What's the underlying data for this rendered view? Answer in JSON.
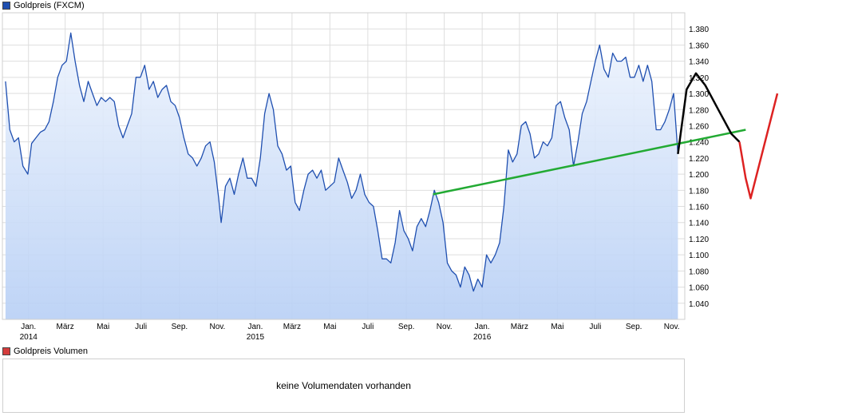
{
  "legend": {
    "price_label": "Goldpreis (FXCM)",
    "price_color": "#1f4fb0",
    "volume_label": "Goldpreis Volumen",
    "volume_color": "#d43c3c"
  },
  "volume_panel": {
    "message": "keine Volumendaten vorhanden"
  },
  "chart_data": {
    "type": "area",
    "title": "Goldpreis (FXCM)",
    "xlabel": "",
    "ylabel": "",
    "ylim": [
      1020,
      1400
    ],
    "grid": true,
    "y_ticks": [
      1040,
      1060,
      1080,
      1100,
      1120,
      1140,
      1160,
      1180,
      1200,
      1220,
      1240,
      1260,
      1280,
      1300,
      1320,
      1340,
      1360,
      1380
    ],
    "y_tick_labels": [
      "1.040",
      "1.060",
      "1.080",
      "1.100",
      "1.120",
      "1.140",
      "1.160",
      "1.180",
      "1.200",
      "1.220",
      "1.240",
      "1.260",
      "1.280",
      "1.300",
      "1.320",
      "1.340",
      "1.360",
      "1.380"
    ],
    "x_ticks": [
      {
        "label": "Jan.",
        "year": "2014",
        "date": "2014-01-01"
      },
      {
        "label": "März",
        "year": "",
        "date": "2014-03-01"
      },
      {
        "label": "Mai",
        "year": "",
        "date": "2014-05-01"
      },
      {
        "label": "Juli",
        "year": "",
        "date": "2014-07-01"
      },
      {
        "label": "Sep.",
        "year": "",
        "date": "2014-09-01"
      },
      {
        "label": "Nov.",
        "year": "",
        "date": "2014-11-01"
      },
      {
        "label": "Jan.",
        "year": "2015",
        "date": "2015-01-01"
      },
      {
        "label": "März",
        "year": "",
        "date": "2015-03-01"
      },
      {
        "label": "Mai",
        "year": "",
        "date": "2015-05-01"
      },
      {
        "label": "Juli",
        "year": "",
        "date": "2015-07-01"
      },
      {
        "label": "Sep.",
        "year": "",
        "date": "2015-09-01"
      },
      {
        "label": "Nov.",
        "year": "",
        "date": "2015-11-01"
      },
      {
        "label": "Jan.",
        "year": "2016",
        "date": "2016-01-01"
      },
      {
        "label": "März",
        "year": "",
        "date": "2016-03-01"
      },
      {
        "label": "Mai",
        "year": "",
        "date": "2016-05-01"
      },
      {
        "label": "Juli",
        "year": "",
        "date": "2016-07-01"
      },
      {
        "label": "Sep.",
        "year": "",
        "date": "2016-09-01"
      },
      {
        "label": "Nov.",
        "year": "",
        "date": "2016-11-01"
      }
    ],
    "series": [
      {
        "name": "Goldpreis (FXCM)",
        "color": "#1f4fb0",
        "points": [
          [
            "2013-11-25",
            1315
          ],
          [
            "2013-12-02",
            1255
          ],
          [
            "2013-12-09",
            1240
          ],
          [
            "2013-12-16",
            1245
          ],
          [
            "2013-12-23",
            1210
          ],
          [
            "2013-12-31",
            1200
          ],
          [
            "2014-01-06",
            1238
          ],
          [
            "2014-01-13",
            1245
          ],
          [
            "2014-01-20",
            1252
          ],
          [
            "2014-01-27",
            1255
          ],
          [
            "2014-02-03",
            1265
          ],
          [
            "2014-02-10",
            1290
          ],
          [
            "2014-02-17",
            1320
          ],
          [
            "2014-02-24",
            1335
          ],
          [
            "2014-03-03",
            1340
          ],
          [
            "2014-03-10",
            1375
          ],
          [
            "2014-03-17",
            1340
          ],
          [
            "2014-03-24",
            1310
          ],
          [
            "2014-03-31",
            1290
          ],
          [
            "2014-04-07",
            1315
          ],
          [
            "2014-04-14",
            1300
          ],
          [
            "2014-04-21",
            1285
          ],
          [
            "2014-04-28",
            1295
          ],
          [
            "2014-05-05",
            1290
          ],
          [
            "2014-05-12",
            1295
          ],
          [
            "2014-05-19",
            1290
          ],
          [
            "2014-05-26",
            1260
          ],
          [
            "2014-06-02",
            1245
          ],
          [
            "2014-06-09",
            1260
          ],
          [
            "2014-06-16",
            1275
          ],
          [
            "2014-06-23",
            1320
          ],
          [
            "2014-06-30",
            1320
          ],
          [
            "2014-07-07",
            1335
          ],
          [
            "2014-07-14",
            1305
          ],
          [
            "2014-07-21",
            1315
          ],
          [
            "2014-07-28",
            1295
          ],
          [
            "2014-08-04",
            1305
          ],
          [
            "2014-08-11",
            1310
          ],
          [
            "2014-08-18",
            1290
          ],
          [
            "2014-08-25",
            1285
          ],
          [
            "2014-09-01",
            1270
          ],
          [
            "2014-09-08",
            1245
          ],
          [
            "2014-09-15",
            1225
          ],
          [
            "2014-09-22",
            1220
          ],
          [
            "2014-09-29",
            1210
          ],
          [
            "2014-10-06",
            1220
          ],
          [
            "2014-10-13",
            1235
          ],
          [
            "2014-10-20",
            1240
          ],
          [
            "2014-10-27",
            1215
          ],
          [
            "2014-11-03",
            1170
          ],
          [
            "2014-11-07",
            1140
          ],
          [
            "2014-11-14",
            1185
          ],
          [
            "2014-11-21",
            1195
          ],
          [
            "2014-11-28",
            1175
          ],
          [
            "2014-12-05",
            1200
          ],
          [
            "2014-12-12",
            1220
          ],
          [
            "2014-12-19",
            1195
          ],
          [
            "2014-12-26",
            1195
          ],
          [
            "2015-01-02",
            1185
          ],
          [
            "2015-01-09",
            1220
          ],
          [
            "2015-01-16",
            1275
          ],
          [
            "2015-01-23",
            1300
          ],
          [
            "2015-01-30",
            1280
          ],
          [
            "2015-02-06",
            1235
          ],
          [
            "2015-02-13",
            1225
          ],
          [
            "2015-02-20",
            1205
          ],
          [
            "2015-02-27",
            1210
          ],
          [
            "2015-03-06",
            1165
          ],
          [
            "2015-03-13",
            1155
          ],
          [
            "2015-03-20",
            1180
          ],
          [
            "2015-03-27",
            1200
          ],
          [
            "2015-04-03",
            1205
          ],
          [
            "2015-04-10",
            1195
          ],
          [
            "2015-04-17",
            1205
          ],
          [
            "2015-04-24",
            1180
          ],
          [
            "2015-05-01",
            1185
          ],
          [
            "2015-05-08",
            1190
          ],
          [
            "2015-05-15",
            1220
          ],
          [
            "2015-05-22",
            1205
          ],
          [
            "2015-05-29",
            1190
          ],
          [
            "2015-06-05",
            1170
          ],
          [
            "2015-06-12",
            1180
          ],
          [
            "2015-06-19",
            1200
          ],
          [
            "2015-06-26",
            1175
          ],
          [
            "2015-07-03",
            1165
          ],
          [
            "2015-07-10",
            1160
          ],
          [
            "2015-07-17",
            1130
          ],
          [
            "2015-07-24",
            1095
          ],
          [
            "2015-07-31",
            1095
          ],
          [
            "2015-08-07",
            1090
          ],
          [
            "2015-08-14",
            1115
          ],
          [
            "2015-08-21",
            1155
          ],
          [
            "2015-08-28",
            1130
          ],
          [
            "2015-09-04",
            1120
          ],
          [
            "2015-09-11",
            1105
          ],
          [
            "2015-09-18",
            1135
          ],
          [
            "2015-09-25",
            1145
          ],
          [
            "2015-10-02",
            1135
          ],
          [
            "2015-10-09",
            1155
          ],
          [
            "2015-10-16",
            1180
          ],
          [
            "2015-10-23",
            1165
          ],
          [
            "2015-10-30",
            1140
          ],
          [
            "2015-11-06",
            1090
          ],
          [
            "2015-11-13",
            1080
          ],
          [
            "2015-11-20",
            1075
          ],
          [
            "2015-11-27",
            1060
          ],
          [
            "2015-12-04",
            1085
          ],
          [
            "2015-12-11",
            1075
          ],
          [
            "2015-12-18",
            1055
          ],
          [
            "2015-12-25",
            1070
          ],
          [
            "2016-01-01",
            1060
          ],
          [
            "2016-01-08",
            1100
          ],
          [
            "2016-01-15",
            1090
          ],
          [
            "2016-01-22",
            1100
          ],
          [
            "2016-01-29",
            1115
          ],
          [
            "2016-02-05",
            1160
          ],
          [
            "2016-02-12",
            1230
          ],
          [
            "2016-02-19",
            1215
          ],
          [
            "2016-02-26",
            1225
          ],
          [
            "2016-03-04",
            1260
          ],
          [
            "2016-03-11",
            1265
          ],
          [
            "2016-03-18",
            1250
          ],
          [
            "2016-03-25",
            1220
          ],
          [
            "2016-04-01",
            1225
          ],
          [
            "2016-04-08",
            1240
          ],
          [
            "2016-04-15",
            1235
          ],
          [
            "2016-04-22",
            1245
          ],
          [
            "2016-04-29",
            1285
          ],
          [
            "2016-05-06",
            1290
          ],
          [
            "2016-05-13",
            1270
          ],
          [
            "2016-05-20",
            1255
          ],
          [
            "2016-05-27",
            1210
          ],
          [
            "2016-06-03",
            1240
          ],
          [
            "2016-06-10",
            1275
          ],
          [
            "2016-06-17",
            1290
          ],
          [
            "2016-06-24",
            1315
          ],
          [
            "2016-07-01",
            1340
          ],
          [
            "2016-07-08",
            1360
          ],
          [
            "2016-07-15",
            1330
          ],
          [
            "2016-07-22",
            1320
          ],
          [
            "2016-07-29",
            1350
          ],
          [
            "2016-08-05",
            1340
          ],
          [
            "2016-08-12",
            1340
          ],
          [
            "2016-08-19",
            1345
          ],
          [
            "2016-08-26",
            1320
          ],
          [
            "2016-09-02",
            1320
          ],
          [
            "2016-09-09",
            1335
          ],
          [
            "2016-09-16",
            1315
          ],
          [
            "2016-09-23",
            1335
          ],
          [
            "2016-09-30",
            1315
          ],
          [
            "2016-10-07",
            1255
          ],
          [
            "2016-10-14",
            1255
          ],
          [
            "2016-10-21",
            1265
          ],
          [
            "2016-10-28",
            1280
          ],
          [
            "2016-11-04",
            1300
          ],
          [
            "2016-11-11",
            1225
          ]
        ]
      }
    ],
    "trendlines": [
      {
        "color": "#22aa33",
        "from": [
          "2015-10-14",
          1175
        ],
        "to": [
          "2017-02-28",
          1255
        ]
      }
    ],
    "projection": {
      "black": [
        [
          "2016-11-11",
          1225
        ],
        [
          "2016-11-25",
          1305
        ],
        [
          "2016-12-10",
          1325
        ],
        [
          "2016-12-25",
          1310
        ],
        [
          "2017-01-15",
          1280
        ],
        [
          "2017-02-05",
          1250
        ],
        [
          "2017-02-18",
          1240
        ]
      ],
      "red": [
        [
          "2017-02-18",
          1240
        ],
        [
          "2017-02-28",
          1195
        ],
        [
          "2017-03-08",
          1170
        ],
        [
          "2017-04-20",
          1300
        ]
      ]
    }
  }
}
